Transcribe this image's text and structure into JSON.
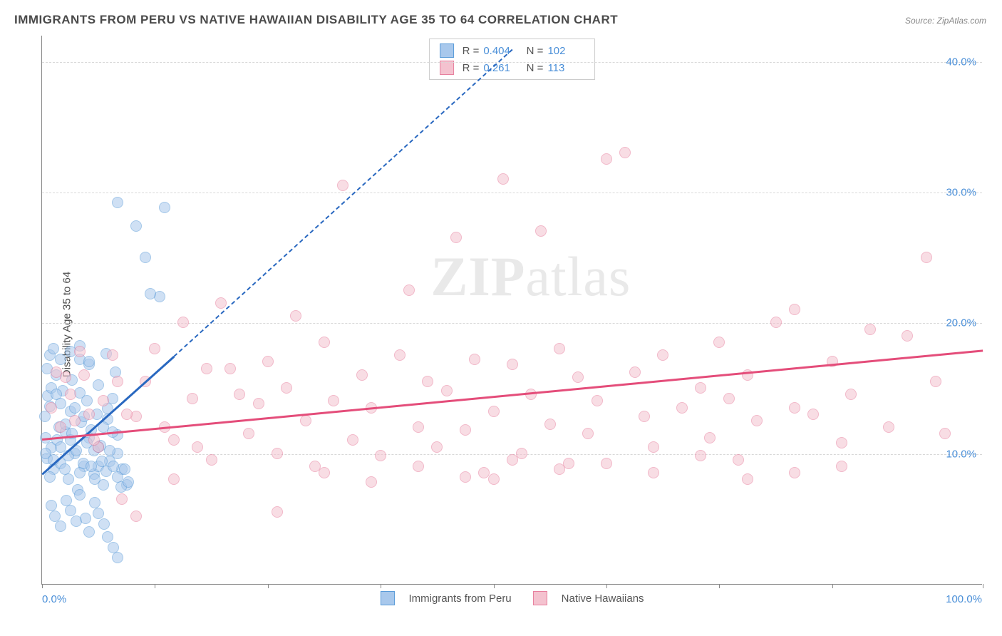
{
  "title": "IMMIGRANTS FROM PERU VS NATIVE HAWAIIAN DISABILITY AGE 35 TO 64 CORRELATION CHART",
  "source": "Source: ZipAtlas.com",
  "y_axis_label": "Disability Age 35 to 64",
  "watermark_a": "ZIP",
  "watermark_b": "atlas",
  "chart": {
    "type": "scatter",
    "xlim": [
      0,
      100
    ],
    "ylim": [
      0,
      42
    ],
    "x_ticks": [
      0,
      12,
      24,
      36,
      48,
      60,
      72,
      84,
      100
    ],
    "x_tick_labels": {
      "0": "0.0%",
      "100": "100.0%"
    },
    "y_gridlines": [
      10,
      20,
      30,
      40
    ],
    "y_tick_labels": {
      "10": "10.0%",
      "20": "20.0%",
      "30": "30.0%",
      "40": "40.0%"
    },
    "background_color": "#ffffff",
    "grid_color": "#d8d8d8",
    "axis_color": "#888888",
    "point_radius": 8,
    "point_opacity": 0.55,
    "series": [
      {
        "name": "Immigrants from Peru",
        "fill_color": "#a8c8ec",
        "stroke_color": "#5a9bd8",
        "trend_color": "#2968c0",
        "R": "0.404",
        "N": "102",
        "trend": {
          "x1": 0,
          "y1": 8.5,
          "x2": 14,
          "y2": 17.5
        },
        "trend_ext": {
          "x1": 14,
          "y1": 17.5,
          "x2": 50,
          "y2": 41
        },
        "points": [
          [
            0.3,
            12.8
          ],
          [
            0.4,
            11.2
          ],
          [
            0.5,
            9.6
          ],
          [
            0.6,
            14.4
          ],
          [
            0.8,
            13.6
          ],
          [
            1.0,
            10.4
          ],
          [
            1.2,
            8.8
          ],
          [
            1.5,
            16.0
          ],
          [
            1.8,
            12.0
          ],
          [
            2.0,
            9.2
          ],
          [
            2.2,
            14.8
          ],
          [
            2.5,
            11.6
          ],
          [
            2.8,
            8.0
          ],
          [
            3.0,
            13.2
          ],
          [
            3.2,
            15.6
          ],
          [
            3.5,
            10.0
          ],
          [
            3.8,
            7.2
          ],
          [
            4.0,
            17.2
          ],
          [
            4.2,
            12.4
          ],
          [
            4.5,
            9.0
          ],
          [
            4.8,
            14.0
          ],
          [
            5.0,
            16.8
          ],
          [
            5.2,
            11.8
          ],
          [
            5.5,
            8.4
          ],
          [
            5.8,
            13.0
          ],
          [
            6.0,
            15.2
          ],
          [
            6.2,
            10.6
          ],
          [
            6.5,
            7.6
          ],
          [
            6.8,
            17.6
          ],
          [
            7.0,
            12.6
          ],
          [
            7.2,
            9.4
          ],
          [
            7.5,
            14.2
          ],
          [
            7.8,
            16.2
          ],
          [
            8.0,
            11.4
          ],
          [
            1.0,
            6.0
          ],
          [
            1.4,
            5.2
          ],
          [
            2.0,
            4.4
          ],
          [
            2.6,
            6.4
          ],
          [
            3.0,
            5.6
          ],
          [
            3.6,
            4.8
          ],
          [
            4.0,
            6.8
          ],
          [
            4.6,
            5.0
          ],
          [
            5.0,
            4.0
          ],
          [
            5.6,
            6.2
          ],
          [
            6.0,
            5.4
          ],
          [
            6.6,
            4.6
          ],
          [
            7.0,
            3.6
          ],
          [
            7.6,
            2.8
          ],
          [
            8.0,
            2.0
          ],
          [
            0.8,
            17.5
          ],
          [
            1.2,
            18.0
          ],
          [
            2.0,
            17.2
          ],
          [
            3.0,
            17.8
          ],
          [
            4.0,
            18.2
          ],
          [
            5.0,
            17.0
          ],
          [
            8.0,
            29.2
          ],
          [
            13.0,
            28.8
          ],
          [
            10.0,
            27.4
          ],
          [
            11.0,
            25.0
          ],
          [
            12.5,
            22.0
          ],
          [
            11.5,
            22.2
          ],
          [
            0.5,
            16.5
          ],
          [
            1.0,
            15.0
          ],
          [
            1.5,
            14.5
          ],
          [
            2.0,
            13.8
          ],
          [
            2.5,
            12.2
          ],
          [
            3.0,
            11.0
          ],
          [
            3.5,
            13.5
          ],
          [
            4.0,
            14.6
          ],
          [
            4.5,
            12.8
          ],
          [
            5.0,
            11.2
          ],
          [
            5.5,
            10.2
          ],
          [
            6.0,
            9.0
          ],
          [
            6.5,
            12.0
          ],
          [
            7.0,
            13.4
          ],
          [
            7.5,
            11.6
          ],
          [
            8.0,
            10.0
          ],
          [
            8.5,
            8.8
          ],
          [
            9.0,
            7.6
          ],
          [
            0.4,
            10.0
          ],
          [
            0.8,
            8.2
          ],
          [
            1.2,
            9.5
          ],
          [
            1.6,
            11.0
          ],
          [
            2.0,
            10.5
          ],
          [
            2.4,
            8.8
          ],
          [
            2.8,
            9.8
          ],
          [
            3.2,
            11.5
          ],
          [
            3.6,
            10.2
          ],
          [
            4.0,
            8.5
          ],
          [
            4.4,
            9.2
          ],
          [
            4.8,
            10.8
          ],
          [
            5.2,
            9.0
          ],
          [
            5.6,
            8.0
          ],
          [
            6.0,
            10.5
          ],
          [
            6.4,
            9.4
          ],
          [
            6.8,
            8.6
          ],
          [
            7.2,
            10.2
          ],
          [
            7.6,
            9.0
          ],
          [
            8.0,
            8.2
          ],
          [
            8.4,
            7.4
          ],
          [
            8.8,
            8.8
          ],
          [
            9.2,
            7.8
          ]
        ]
      },
      {
        "name": "Native Hawaiians",
        "fill_color": "#f4c2cf",
        "stroke_color": "#e77f9e",
        "trend_color": "#e44d7a",
        "R": "0.261",
        "N": "113",
        "trend": {
          "x1": 0,
          "y1": 11.2,
          "x2": 100,
          "y2": 18.0
        },
        "points": [
          [
            1.5,
            16.2
          ],
          [
            2.0,
            12.0
          ],
          [
            3.0,
            14.5
          ],
          [
            4.0,
            17.8
          ],
          [
            5.0,
            13.0
          ],
          [
            6.0,
            10.5
          ],
          [
            8.0,
            15.5
          ],
          [
            10.0,
            12.8
          ],
          [
            12.0,
            18.0
          ],
          [
            14.0,
            11.0
          ],
          [
            15.0,
            20.0
          ],
          [
            16.0,
            14.2
          ],
          [
            18.0,
            9.5
          ],
          [
            19.0,
            21.5
          ],
          [
            20.0,
            16.5
          ],
          [
            22.0,
            11.5
          ],
          [
            23.0,
            13.8
          ],
          [
            24.0,
            17.0
          ],
          [
            25.0,
            10.0
          ],
          [
            26.0,
            15.0
          ],
          [
            27.0,
            20.5
          ],
          [
            28.0,
            12.5
          ],
          [
            29.0,
            9.0
          ],
          [
            30.0,
            18.5
          ],
          [
            31.0,
            14.0
          ],
          [
            32.0,
            30.5
          ],
          [
            33.0,
            11.0
          ],
          [
            34.0,
            16.0
          ],
          [
            35.0,
            13.5
          ],
          [
            36.0,
            9.8
          ],
          [
            38.0,
            17.5
          ],
          [
            39.0,
            22.5
          ],
          [
            40.0,
            12.0
          ],
          [
            41.0,
            15.5
          ],
          [
            42.0,
            10.5
          ],
          [
            43.0,
            14.8
          ],
          [
            44.0,
            26.5
          ],
          [
            45.0,
            11.8
          ],
          [
            46.0,
            17.2
          ],
          [
            47.0,
            8.5
          ],
          [
            48.0,
            13.2
          ],
          [
            49.0,
            31.0
          ],
          [
            50.0,
            16.8
          ],
          [
            51.0,
            10.0
          ],
          [
            52.0,
            14.5
          ],
          [
            53.0,
            27.0
          ],
          [
            54.0,
            12.2
          ],
          [
            55.0,
            18.0
          ],
          [
            56.0,
            9.2
          ],
          [
            57.0,
            15.8
          ],
          [
            58.0,
            11.5
          ],
          [
            59.0,
            14.0
          ],
          [
            60.0,
            32.5
          ],
          [
            62.0,
            33.0
          ],
          [
            63.0,
            16.2
          ],
          [
            64.0,
            12.8
          ],
          [
            65.0,
            10.5
          ],
          [
            66.0,
            17.5
          ],
          [
            68.0,
            13.5
          ],
          [
            70.0,
            15.0
          ],
          [
            71.0,
            11.2
          ],
          [
            72.0,
            18.5
          ],
          [
            73.0,
            14.2
          ],
          [
            74.0,
            9.5
          ],
          [
            75.0,
            16.0
          ],
          [
            76.0,
            12.5
          ],
          [
            78.0,
            20.0
          ],
          [
            80.0,
            21.0
          ],
          [
            82.0,
            13.0
          ],
          [
            84.0,
            17.0
          ],
          [
            85.0,
            10.8
          ],
          [
            86.0,
            14.5
          ],
          [
            88.0,
            19.5
          ],
          [
            90.0,
            12.0
          ],
          [
            92.0,
            19.0
          ],
          [
            94.0,
            25.0
          ],
          [
            95.0,
            15.5
          ],
          [
            96.0,
            11.5
          ],
          [
            8.5,
            6.5
          ],
          [
            10.0,
            5.2
          ],
          [
            14.0,
            8.0
          ],
          [
            25.0,
            5.5
          ],
          [
            30.0,
            8.5
          ],
          [
            35.0,
            7.8
          ],
          [
            40.0,
            9.0
          ],
          [
            45.0,
            8.2
          ],
          [
            48.0,
            8.0
          ],
          [
            50.0,
            9.5
          ],
          [
            55.0,
            8.8
          ],
          [
            60.0,
            9.2
          ],
          [
            65.0,
            8.5
          ],
          [
            70.0,
            9.8
          ],
          [
            75.0,
            8.0
          ],
          [
            80.0,
            8.5
          ],
          [
            85.0,
            9.0
          ],
          [
            1.0,
            13.5
          ],
          [
            2.5,
            15.8
          ],
          [
            3.5,
            12.5
          ],
          [
            4.5,
            16.0
          ],
          [
            5.5,
            11.0
          ],
          [
            6.5,
            14.0
          ],
          [
            7.5,
            17.5
          ],
          [
            9.0,
            13.0
          ],
          [
            11.0,
            15.5
          ],
          [
            13.0,
            12.0
          ],
          [
            16.5,
            10.5
          ],
          [
            17.5,
            16.5
          ],
          [
            21.0,
            14.5
          ],
          [
            80.0,
            13.5
          ]
        ]
      }
    ]
  },
  "legend_bottom": [
    {
      "label": "Immigrants from Peru",
      "fill": "#a8c8ec",
      "stroke": "#5a9bd8"
    },
    {
      "label": "Native Hawaiians",
      "fill": "#f4c2cf",
      "stroke": "#e77f9e"
    }
  ]
}
